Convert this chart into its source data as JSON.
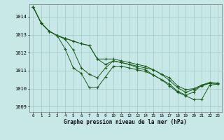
{
  "title": "Graphe pression niveau de la mer (hPa)",
  "bg_color": "#c8e8e8",
  "grid_color": "#a0c8c8",
  "line_color": "#1a5c1a",
  "xlim": [
    -0.5,
    23.5
  ],
  "ylim": [
    1008.7,
    1014.7
  ],
  "yticks": [
    1009,
    1010,
    1011,
    1012,
    1013,
    1014
  ],
  "xticks": [
    0,
    1,
    2,
    3,
    4,
    5,
    6,
    7,
    8,
    9,
    10,
    11,
    12,
    13,
    14,
    15,
    16,
    17,
    18,
    19,
    20,
    21,
    22,
    23
  ],
  "lines": [
    [
      1014.55,
      1013.65,
      1013.2,
      1012.95,
      1012.8,
      1012.65,
      1012.5,
      1012.4,
      1011.65,
      1011.35,
      1011.55,
      1011.45,
      1011.35,
      1011.25,
      1011.15,
      1011.05,
      1010.8,
      1010.6,
      1010.15,
      1009.95,
      1010.0,
      1010.2,
      1010.35,
      1010.3
    ],
    [
      1014.55,
      1013.65,
      1013.2,
      1012.95,
      1012.8,
      1012.65,
      1012.5,
      1012.4,
      1011.65,
      1011.65,
      1011.65,
      1011.55,
      1011.45,
      1011.35,
      1011.25,
      1011.05,
      1010.8,
      1010.45,
      1010.05,
      1009.8,
      1009.95,
      1010.15,
      1010.3,
      1010.3
    ],
    [
      1014.55,
      1013.65,
      1013.2,
      1012.95,
      1012.75,
      1012.15,
      1011.15,
      1010.8,
      1010.6,
      1011.15,
      1011.55,
      1011.45,
      1011.35,
      1011.15,
      1011.05,
      1010.75,
      1010.5,
      1010.25,
      1009.85,
      1009.65,
      1009.8,
      1010.2,
      1010.3,
      1010.3
    ],
    [
      1014.55,
      1013.65,
      1013.2,
      1012.95,
      1012.2,
      1011.15,
      1010.85,
      1010.05,
      1010.05,
      1010.65,
      1011.25,
      1011.25,
      1011.15,
      1011.05,
      1010.95,
      1010.75,
      1010.5,
      1010.15,
      1009.8,
      1009.6,
      1009.4,
      1009.4,
      1010.2,
      1010.25
    ]
  ]
}
